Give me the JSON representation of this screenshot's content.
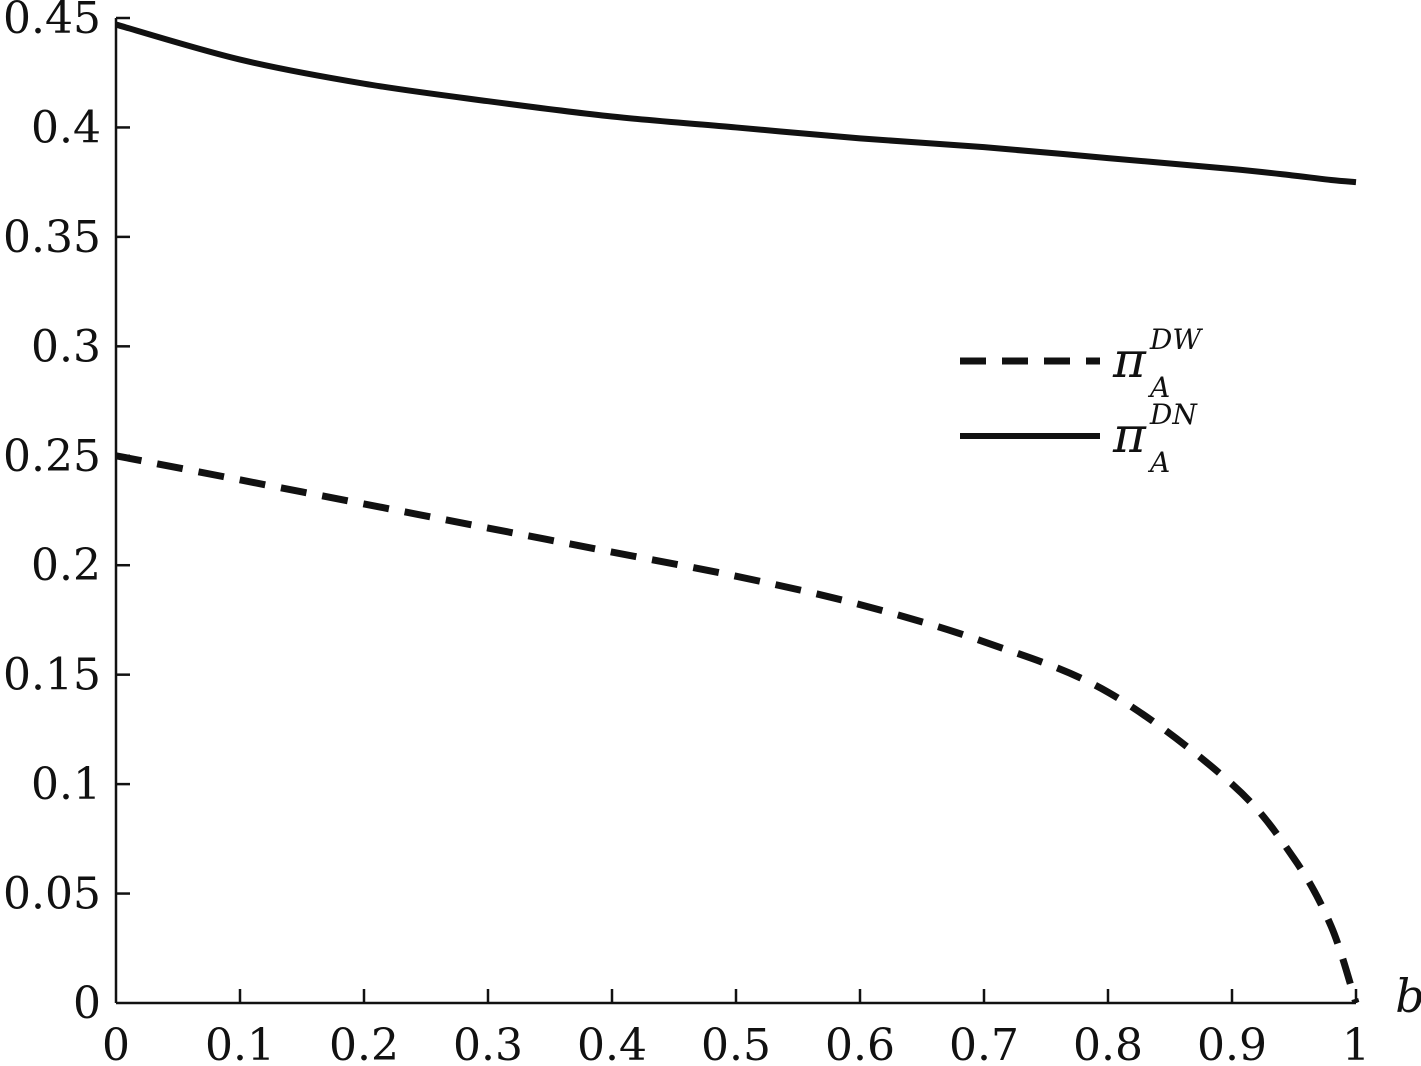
{
  "chart_data": {
    "type": "line",
    "title": "",
    "xlabel": "b",
    "ylabel": "",
    "xlim": [
      0,
      1
    ],
    "ylim": [
      0,
      0.45
    ],
    "x_ticks": [
      "0",
      "0.1",
      "0.2",
      "0.3",
      "0.4",
      "0.5",
      "0.6",
      "0.7",
      "0.8",
      "0.9",
      "1"
    ],
    "y_ticks": [
      "0",
      "0.05",
      "0.1",
      "0.15",
      "0.2",
      "0.25",
      "0.3",
      "0.35",
      "0.4",
      "0.45"
    ],
    "grid": false,
    "legend_position": "right",
    "x": [
      0,
      0.1,
      0.2,
      0.3,
      0.4,
      0.5,
      0.6,
      0.7,
      0.8,
      0.9,
      0.95,
      0.98,
      1.0
    ],
    "series": [
      {
        "name": "π_A^DW",
        "symbol": "π",
        "sub": "A",
        "sup": "DW",
        "style": "dashed",
        "values": [
          0.25,
          0.239,
          0.228,
          0.217,
          0.206,
          0.195,
          0.182,
          0.165,
          0.142,
          0.1,
          0.066,
          0.035,
          0.0
        ]
      },
      {
        "name": "π_A^DN",
        "symbol": "π",
        "sub": "A",
        "sup": "DN",
        "style": "solid",
        "values": [
          0.447,
          0.431,
          0.42,
          0.412,
          0.405,
          0.4,
          0.395,
          0.391,
          0.386,
          0.381,
          0.378,
          0.376,
          0.375
        ]
      }
    ]
  }
}
